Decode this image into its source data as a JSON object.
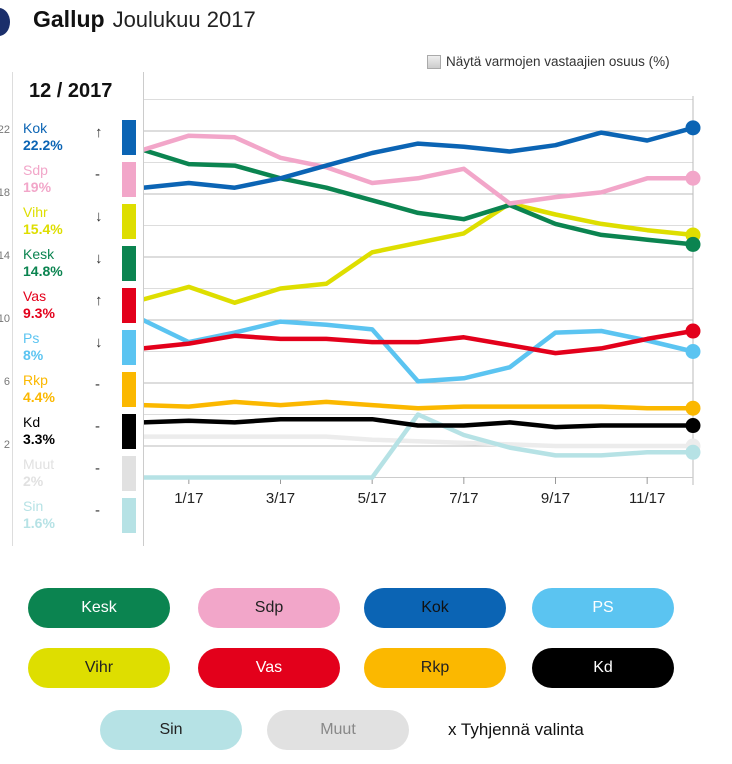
{
  "header": {
    "title": "Gallup",
    "subtitle": "Joulukuu 2017"
  },
  "checkbox": {
    "label": "Näytä varmojen vastaajien osuus (%)",
    "checked": false
  },
  "panel": {
    "month": "12 / 2017",
    "rows": [
      {
        "name": "Kok",
        "value": "22.2%",
        "trend": "↑",
        "color": "#0b64b4"
      },
      {
        "name": "Sdp",
        "value": "19%",
        "trend": "-",
        "color": "#f2a6c9"
      },
      {
        "name": "Vihr",
        "value": "15.4%",
        "trend": "↓",
        "color": "#dede00"
      },
      {
        "name": "Kesk",
        "value": "14.8%",
        "trend": "↓",
        "color": "#0b8450"
      },
      {
        "name": "Vas",
        "value": "9.3%",
        "trend": "↑",
        "color": "#e3001b"
      },
      {
        "name": "Ps",
        "value": "8%",
        "trend": "↓",
        "color": "#5bc4f1"
      },
      {
        "name": "Rkp",
        "value": "4.4%",
        "trend": "-",
        "color": "#fbb800"
      },
      {
        "name": "Kd",
        "value": "3.3%",
        "trend": "-",
        "color": "#000000"
      },
      {
        "name": "Muut",
        "value": "2%",
        "trend": "-",
        "color": "#e1e1e1"
      },
      {
        "name": "Sin",
        "value": "1.6%",
        "trend": "-",
        "color": "#b6e2e5"
      }
    ]
  },
  "buttons": [
    {
      "label": "Kesk",
      "bg": "#0b8450",
      "fg": "#ffffff"
    },
    {
      "label": "Sdp",
      "bg": "#f2a6c9",
      "fg": "#222222"
    },
    {
      "label": "Kok",
      "bg": "#0b64b4",
      "fg": "#111111"
    },
    {
      "label": "PS",
      "bg": "#5bc4f1",
      "fg": "#ffffff"
    },
    {
      "label": "Vihr",
      "bg": "#dede00",
      "fg": "#222222"
    },
    {
      "label": "Vas",
      "bg": "#e3001b",
      "fg": "#ffffff"
    },
    {
      "label": "Rkp",
      "bg": "#fbb800",
      "fg": "#222222"
    },
    {
      "label": "Kd",
      "bg": "#000000",
      "fg": "#ffffff"
    },
    {
      "label": "Sin",
      "bg": "#b6e2e5",
      "fg": "#222222"
    },
    {
      "label": "Muut",
      "bg": "#e1e1e1",
      "fg": "#888888"
    }
  ],
  "clear_label": "x Tyhjennä valinta",
  "chart_data": {
    "type": "line",
    "x": [
      "12/16",
      "1/17",
      "2/17",
      "3/17",
      "4/17",
      "5/17",
      "6/17",
      "7/17",
      "8/17",
      "9/17",
      "10/17",
      "11/17",
      "12/17"
    ],
    "xtick_labels": [
      "1/17",
      "3/17",
      "5/17",
      "7/17",
      "9/17",
      "11/17"
    ],
    "ytick_labels": [
      "22",
      "18",
      "14",
      "10",
      "6",
      "2"
    ],
    "ylim": [
      0,
      24
    ],
    "grid": true,
    "series": [
      {
        "name": "Muut",
        "color": "#ececec",
        "values": [
          2.6,
          2.6,
          2.6,
          2.6,
          2.6,
          2.4,
          2.3,
          2.2,
          2.1,
          2.0,
          2.0,
          2.0,
          2.0
        ]
      },
      {
        "name": "Sin",
        "color": "#b6e2e5",
        "values": [
          0,
          0,
          0,
          0,
          0,
          0,
          4.0,
          2.7,
          1.9,
          1.4,
          1.4,
          1.6,
          1.6
        ]
      },
      {
        "name": "Kd",
        "color": "#000000",
        "values": [
          3.5,
          3.6,
          3.5,
          3.7,
          3.7,
          3.7,
          3.3,
          3.3,
          3.5,
          3.2,
          3.3,
          3.3,
          3.3
        ]
      },
      {
        "name": "Rkp",
        "color": "#fbb800",
        "values": [
          4.6,
          4.5,
          4.8,
          4.6,
          4.8,
          4.6,
          4.4,
          4.5,
          4.5,
          4.5,
          4.5,
          4.4,
          4.4
        ]
      },
      {
        "name": "Ps",
        "color": "#5bc4f1",
        "values": [
          10.0,
          8.6,
          9.2,
          9.9,
          9.7,
          9.4,
          6.1,
          6.3,
          7.0,
          9.2,
          9.3,
          8.7,
          8.0
        ]
      },
      {
        "name": "Vas",
        "color": "#e3001b",
        "values": [
          8.2,
          8.5,
          9.0,
          8.8,
          8.8,
          8.6,
          8.6,
          8.9,
          8.4,
          7.9,
          8.2,
          8.8,
          9.3
        ]
      },
      {
        "name": "Vihr",
        "color": "#dede00",
        "values": [
          11.3,
          12.1,
          11.1,
          12.0,
          12.3,
          14.3,
          14.9,
          15.5,
          17.4,
          16.7,
          16.1,
          15.7,
          15.4
        ]
      },
      {
        "name": "Kesk",
        "color": "#0b8450",
        "values": [
          20.8,
          19.9,
          19.8,
          19.0,
          18.4,
          17.6,
          16.8,
          16.4,
          17.3,
          16.1,
          15.4,
          15.1,
          14.8
        ]
      },
      {
        "name": "Sdp",
        "color": "#f2a6c9",
        "values": [
          20.8,
          21.7,
          21.6,
          20.3,
          19.7,
          18.7,
          19.0,
          19.6,
          17.4,
          17.8,
          18.1,
          19.0,
          19.0
        ]
      },
      {
        "name": "Kok",
        "color": "#0b64b4",
        "values": [
          18.4,
          18.7,
          18.4,
          19.0,
          19.8,
          20.6,
          21.2,
          21.0,
          20.7,
          21.1,
          21.9,
          21.4,
          22.2
        ]
      }
    ]
  }
}
